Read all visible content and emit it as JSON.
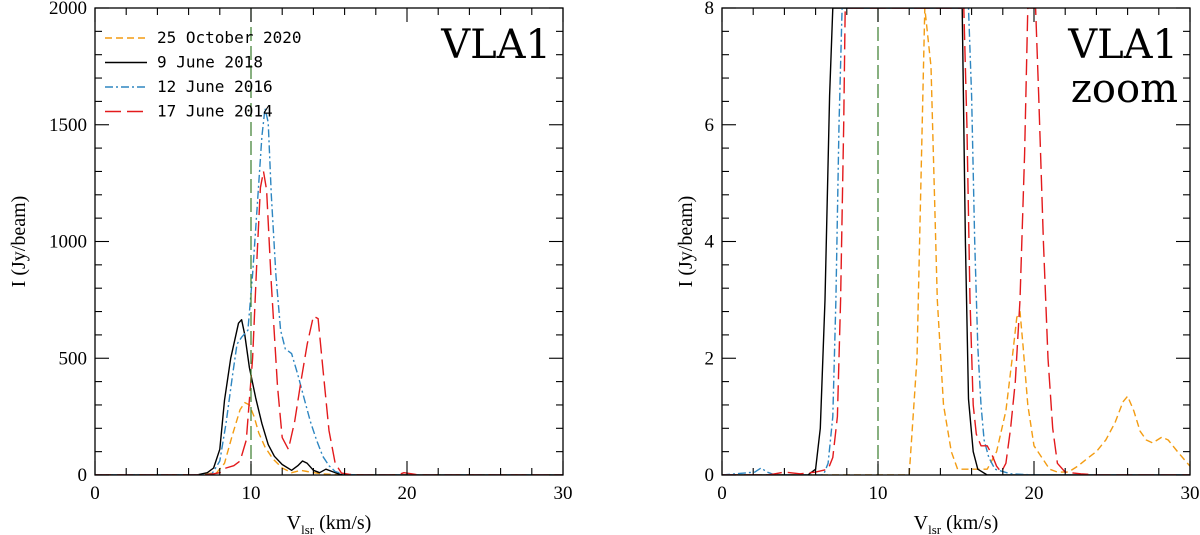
{
  "chart_data": [
    {
      "type": "line",
      "panel_label": [
        "VLA1"
      ],
      "xlabel": {
        "main": "V",
        "sub": "lsr",
        "tail": " (km/s)"
      },
      "ylabel": "I (Jy/beam)",
      "xlim": [
        0,
        30
      ],
      "ylim": [
        0,
        2000
      ],
      "xticks": [
        0,
        10,
        20,
        30
      ],
      "yticks": [
        0,
        500,
        1000,
        1500,
        2000
      ],
      "vline": 10,
      "legend_position": "top-left",
      "series": [
        {
          "name": "25 October 2020",
          "color": "#f39c12",
          "dash": "dashed-short",
          "points": [
            [
              0,
              0
            ],
            [
              6.5,
              0
            ],
            [
              7.8,
              10
            ],
            [
              8.3,
              50
            ],
            [
              8.8,
              170
            ],
            [
              9.3,
              280
            ],
            [
              9.6,
              310
            ],
            [
              9.9,
              300
            ],
            [
              10.2,
              250
            ],
            [
              10.5,
              180
            ],
            [
              10.9,
              120
            ],
            [
              11.4,
              70
            ],
            [
              12,
              30
            ],
            [
              12.6,
              10
            ],
            [
              13.2,
              20
            ],
            [
              13.6,
              15
            ],
            [
              14.5,
              5
            ],
            [
              16,
              0
            ],
            [
              30,
              0
            ]
          ]
        },
        {
          "name": "9 June 2018",
          "color": "#000000",
          "dash": "solid",
          "points": [
            [
              0,
              0
            ],
            [
              6.5,
              0
            ],
            [
              7.2,
              10
            ],
            [
              7.6,
              30
            ],
            [
              8,
              110
            ],
            [
              8.3,
              320
            ],
            [
              8.7,
              500
            ],
            [
              9,
              590
            ],
            [
              9.2,
              650
            ],
            [
              9.4,
              665
            ],
            [
              9.6,
              600
            ],
            [
              9.9,
              460
            ],
            [
              10.3,
              330
            ],
            [
              10.7,
              220
            ],
            [
              11.1,
              130
            ],
            [
              11.5,
              80
            ],
            [
              12,
              45
            ],
            [
              12.6,
              20
            ],
            [
              13,
              40
            ],
            [
              13.3,
              60
            ],
            [
              13.6,
              50
            ],
            [
              14,
              20
            ],
            [
              14.4,
              10
            ],
            [
              14.8,
              25
            ],
            [
              15.2,
              15
            ],
            [
              15.7,
              3
            ],
            [
              16,
              0
            ],
            [
              30,
              0
            ]
          ]
        },
        {
          "name": "12 June 2016",
          "color": "#2e86c1",
          "dash": "dashdot",
          "points": [
            [
              0,
              0
            ],
            [
              2.5,
              0
            ],
            [
              2.6,
              4
            ],
            [
              2.9,
              0
            ],
            [
              6.8,
              0
            ],
            [
              7.5,
              5
            ],
            [
              8,
              60
            ],
            [
              8.4,
              220
            ],
            [
              8.8,
              420
            ],
            [
              9.1,
              560
            ],
            [
              9.4,
              590
            ],
            [
              9.8,
              620
            ],
            [
              10.1,
              860
            ],
            [
              10.4,
              1150
            ],
            [
              10.7,
              1450
            ],
            [
              10.9,
              1570
            ],
            [
              11.1,
              1510
            ],
            [
              11.3,
              1200
            ],
            [
              11.6,
              850
            ],
            [
              11.9,
              620
            ],
            [
              12.2,
              540
            ],
            [
              12.6,
              520
            ],
            [
              13,
              430
            ],
            [
              13.4,
              330
            ],
            [
              13.8,
              230
            ],
            [
              14.2,
              150
            ],
            [
              14.6,
              80
            ],
            [
              15,
              40
            ],
            [
              15.4,
              15
            ],
            [
              16,
              3
            ],
            [
              17,
              0
            ],
            [
              30,
              0
            ]
          ]
        },
        {
          "name": "17 June 2014",
          "color": "#e31a1c",
          "dash": "long-dash",
          "points": [
            [
              0,
              0
            ],
            [
              7,
              0
            ],
            [
              7.6,
              5
            ],
            [
              8,
              10
            ],
            [
              8.4,
              30
            ],
            [
              8.9,
              40
            ],
            [
              9.3,
              60
            ],
            [
              9.7,
              150
            ],
            [
              10.1,
              500
            ],
            [
              10.4,
              950
            ],
            [
              10.6,
              1230
            ],
            [
              10.8,
              1300
            ],
            [
              11,
              1220
            ],
            [
              11.3,
              820
            ],
            [
              11.7,
              380
            ],
            [
              12,
              160
            ],
            [
              12.4,
              110
            ],
            [
              12.8,
              230
            ],
            [
              13.2,
              400
            ],
            [
              13.6,
              560
            ],
            [
              14,
              680
            ],
            [
              14.3,
              670
            ],
            [
              14.6,
              460
            ],
            [
              15,
              190
            ],
            [
              15.4,
              50
            ],
            [
              15.8,
              8
            ],
            [
              16.3,
              3
            ],
            [
              17,
              0
            ],
            [
              19.4,
              0
            ],
            [
              19.8,
              10
            ],
            [
              20.3,
              5
            ],
            [
              20.8,
              0
            ],
            [
              30,
              0
            ]
          ]
        }
      ]
    },
    {
      "type": "line",
      "panel_label": [
        "VLA1",
        "zoom"
      ],
      "xlabel": {
        "main": "V",
        "sub": "lsr",
        "tail": " (km/s)"
      },
      "ylabel": "I (Jy/beam)",
      "xlim": [
        0,
        30
      ],
      "ylim": [
        0,
        8
      ],
      "xticks": [
        0,
        10,
        20,
        30
      ],
      "yticks": [
        0,
        2,
        4,
        6,
        8
      ],
      "vline": 10,
      "series": [
        {
          "name": "25 October 2020",
          "color": "#f39c12",
          "dash": "dashed-short",
          "points": [
            [
              0,
              0
            ],
            [
              12,
              0
            ],
            [
              12.5,
              2
            ],
            [
              13,
              8
            ],
            [
              13.4,
              7
            ],
            [
              13.8,
              3
            ],
            [
              14.2,
              1.2
            ],
            [
              14.7,
              0.4
            ],
            [
              15.1,
              0.1
            ],
            [
              16,
              0.1
            ],
            [
              17,
              0.1
            ],
            [
              17.6,
              0.4
            ],
            [
              18.2,
              1.1
            ],
            [
              18.6,
              2
            ],
            [
              18.9,
              2.7
            ],
            [
              19.1,
              2.8
            ],
            [
              19.3,
              2.2
            ],
            [
              19.6,
              1.2
            ],
            [
              20,
              0.5
            ],
            [
              20.5,
              0.3
            ],
            [
              21,
              0.1
            ],
            [
              21.5,
              0.05
            ],
            [
              22.2,
              0.05
            ],
            [
              22.8,
              0.15
            ],
            [
              23.5,
              0.3
            ],
            [
              24,
              0.4
            ],
            [
              24.6,
              0.6
            ],
            [
              25.2,
              0.9
            ],
            [
              25.7,
              1.25
            ],
            [
              26,
              1.35
            ],
            [
              26.4,
              1.1
            ],
            [
              26.8,
              0.75
            ],
            [
              27.2,
              0.6
            ],
            [
              27.6,
              0.55
            ],
            [
              28.2,
              0.65
            ],
            [
              28.6,
              0.6
            ],
            [
              29.2,
              0.4
            ],
            [
              30,
              0.15
            ]
          ]
        },
        {
          "name": "9 June 2018",
          "color": "#000000",
          "dash": "solid",
          "points": [
            [
              0,
              0
            ],
            [
              5.5,
              0
            ],
            [
              6,
              0.1
            ],
            [
              6.3,
              0.8
            ],
            [
              6.6,
              3
            ],
            [
              6.9,
              6.5
            ],
            [
              7.1,
              8
            ],
            [
              15.4,
              8
            ],
            [
              15.6,
              4
            ],
            [
              15.8,
              1.3
            ],
            [
              16.1,
              0.4
            ],
            [
              16.4,
              0.1
            ],
            [
              17,
              0
            ],
            [
              30,
              0
            ]
          ]
        },
        {
          "name": "12 June 2016",
          "color": "#2e86c1",
          "dash": "dashdot",
          "points": [
            [
              0,
              0
            ],
            [
              2.1,
              0.05
            ],
            [
              2.5,
              0.12
            ],
            [
              2.9,
              0.05
            ],
            [
              3.4,
              0
            ],
            [
              6.5,
              0
            ],
            [
              6.8,
              0.2
            ],
            [
              7.1,
              1
            ],
            [
              7.3,
              3
            ],
            [
              7.5,
              6
            ],
            [
              7.7,
              8
            ],
            [
              15.8,
              8
            ],
            [
              16,
              6.5
            ],
            [
              16.2,
              4
            ],
            [
              16.4,
              2.2
            ],
            [
              16.6,
              1.2
            ],
            [
              16.8,
              0.6
            ],
            [
              17.1,
              0.3
            ],
            [
              17.5,
              0.1
            ],
            [
              18.5,
              0.02
            ],
            [
              20,
              0
            ],
            [
              30,
              0
            ]
          ]
        },
        {
          "name": "17 June 2014",
          "color": "#e31a1c",
          "dash": "long-dash",
          "points": [
            [
              0,
              0
            ],
            [
              3,
              0
            ],
            [
              4,
              0.05
            ],
            [
              5,
              0.02
            ],
            [
              6,
              0.05
            ],
            [
              6.8,
              0.1
            ],
            [
              7.1,
              0.3
            ],
            [
              7.4,
              1
            ],
            [
              7.6,
              3
            ],
            [
              7.8,
              6
            ],
            [
              7.9,
              8
            ],
            [
              15.5,
              8
            ],
            [
              15.7,
              6
            ],
            [
              15.9,
              3
            ],
            [
              16.1,
              1.2
            ],
            [
              16.3,
              0.7
            ],
            [
              16.6,
              0.5
            ],
            [
              17,
              0.5
            ],
            [
              17.3,
              0.35
            ],
            [
              17.6,
              0.15
            ],
            [
              17.9,
              0.05
            ],
            [
              18.2,
              0.2
            ],
            [
              18.5,
              0.8
            ],
            [
              18.8,
              1.6
            ],
            [
              19.1,
              3
            ],
            [
              19.4,
              5.5
            ],
            [
              19.6,
              8
            ],
            [
              20.1,
              8
            ],
            [
              20.3,
              6.5
            ],
            [
              20.6,
              4
            ],
            [
              20.9,
              2
            ],
            [
              21.2,
              0.8
            ],
            [
              21.5,
              0.2
            ],
            [
              22,
              0.05
            ],
            [
              23,
              0.02
            ],
            [
              24,
              0
            ],
            [
              30,
              0
            ]
          ]
        }
      ]
    }
  ]
}
